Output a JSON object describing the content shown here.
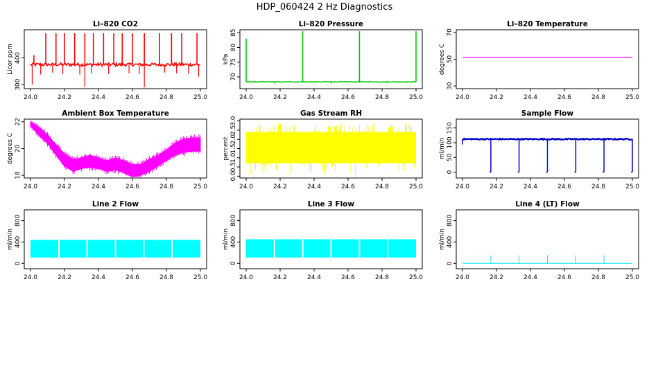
{
  "page": {
    "title": "HDP_060424  2 Hz Diagnostics"
  },
  "chart_data": [
    {
      "type": "line",
      "title": "Li–820 CO2",
      "xlabel": "",
      "ylabel": "Licor ppm",
      "xlim": [
        24.0,
        25.0
      ],
      "ylim": [
        285,
        505
      ],
      "xticks": [
        "24.0",
        "24.2",
        "24.4",
        "24.6",
        "24.8",
        "25.0"
      ],
      "yticks": [
        300,
        400
      ],
      "color": "#ff0000",
      "series": [
        {
          "baseline": 375,
          "noise": 6,
          "spikes_up": [
            {
              "x": 24.02,
              "y": 410
            },
            {
              "x": 24.09,
              "y": 492
            },
            {
              "x": 24.15,
              "y": 492
            },
            {
              "x": 24.2,
              "y": 492
            },
            {
              "x": 24.26,
              "y": 492
            },
            {
              "x": 24.32,
              "y": 492
            },
            {
              "x": 24.37,
              "y": 492
            },
            {
              "x": 24.43,
              "y": 492
            },
            {
              "x": 24.49,
              "y": 492
            },
            {
              "x": 24.54,
              "y": 492
            },
            {
              "x": 24.6,
              "y": 492
            },
            {
              "x": 24.67,
              "y": 492
            },
            {
              "x": 24.76,
              "y": 492
            },
            {
              "x": 24.83,
              "y": 492
            },
            {
              "x": 24.89,
              "y": 492
            },
            {
              "x": 24.98,
              "y": 492
            }
          ],
          "spikes_down": [
            {
              "x": 24.01,
              "y": 300
            },
            {
              "x": 24.06,
              "y": 338
            },
            {
              "x": 24.13,
              "y": 345
            },
            {
              "x": 24.19,
              "y": 340
            },
            {
              "x": 24.29,
              "y": 338
            },
            {
              "x": 24.32,
              "y": 292
            },
            {
              "x": 24.36,
              "y": 342
            },
            {
              "x": 24.46,
              "y": 340
            },
            {
              "x": 24.58,
              "y": 342
            },
            {
              "x": 24.64,
              "y": 340
            },
            {
              "x": 24.67,
              "y": 290
            },
            {
              "x": 24.79,
              "y": 345
            },
            {
              "x": 24.86,
              "y": 342
            },
            {
              "x": 24.93,
              "y": 340
            },
            {
              "x": 24.99,
              "y": 330
            }
          ]
        }
      ]
    },
    {
      "type": "line",
      "title": "Li–820 Pressure",
      "xlabel": "",
      "ylabel": "kPa",
      "xlim": [
        24.0,
        25.0
      ],
      "ylim": [
        66,
        86
      ],
      "xticks": [
        "24.0",
        "24.2",
        "24.4",
        "24.6",
        "24.8",
        "25.0"
      ],
      "yticks": [
        70,
        75,
        80,
        85
      ],
      "color": "#00cc00",
      "series": [
        {
          "baseline": 68.3,
          "noise": 0.1,
          "spikes_up": [
            {
              "x": 24.0,
              "y": 83
            },
            {
              "x": 24.333,
              "y": 85.5
            },
            {
              "x": 24.667,
              "y": 85.5
            },
            {
              "x": 25.0,
              "y": 85.5
            }
          ],
          "spikes_down": [
            {
              "x": 24.17,
              "y": 67.6
            },
            {
              "x": 24.5,
              "y": 67.6
            },
            {
              "x": 24.83,
              "y": 67.8
            }
          ]
        }
      ]
    },
    {
      "type": "line",
      "title": "Li–820 Temperature",
      "xlabel": "",
      "ylabel": "degrees C",
      "xlim": [
        24.0,
        25.0
      ],
      "ylim": [
        28,
        72
      ],
      "xticks": [
        "24.0",
        "24.2",
        "24.4",
        "24.6",
        "24.8",
        "25.0"
      ],
      "yticks": [
        30,
        50,
        70
      ],
      "color": "#ff00ff",
      "series": [
        {
          "x": [
            24.0,
            25.0
          ],
          "y": [
            51.5,
            51.5
          ]
        }
      ]
    },
    {
      "type": "area",
      "title": "Ambient Box Temperature",
      "xlabel": "",
      "ylabel": "degrees C",
      "xlim": [
        24.0,
        25.0
      ],
      "ylim": [
        17.8,
        22.2
      ],
      "xticks": [
        "24.0",
        "24.2",
        "24.4",
        "24.6",
        "24.8",
        "25.0"
      ],
      "yticks": [
        18,
        20,
        22
      ],
      "color": "#ff00ff",
      "series": [
        {
          "x": [
            24.0,
            24.05,
            24.1,
            24.15,
            24.2,
            24.25,
            24.3,
            24.35,
            24.4,
            24.45,
            24.5,
            24.55,
            24.6,
            24.65,
            24.7,
            24.75,
            24.8,
            24.85,
            24.9,
            24.95,
            25.0
          ],
          "upper": [
            22.0,
            21.6,
            21.0,
            20.3,
            19.6,
            19.2,
            19.3,
            19.5,
            19.3,
            19.1,
            19.3,
            19.1,
            18.8,
            18.8,
            19.2,
            19.5,
            19.9,
            20.4,
            20.7,
            20.8,
            20.8
          ],
          "lower": [
            21.7,
            21.0,
            20.4,
            19.5,
            18.7,
            18.3,
            18.5,
            18.6,
            18.5,
            18.3,
            18.4,
            18.2,
            17.9,
            18.0,
            18.3,
            18.7,
            19.1,
            19.5,
            19.7,
            19.8,
            19.8
          ]
        }
      ]
    },
    {
      "type": "line",
      "title": "Gas Stream RH",
      "xlabel": "",
      "ylabel": "percent",
      "xlim": [
        24.0,
        25.0
      ],
      "ylim": [
        -0.1,
        3.1
      ],
      "xticks": [
        "24.0",
        "24.2",
        "24.4",
        "24.6",
        "24.8",
        "25.0"
      ],
      "yticks": [
        "0.0",
        "0.5",
        "1.0",
        "1.5",
        "2.0",
        "2.5",
        "3.0"
      ],
      "color": "#ffff00",
      "series": [
        {
          "band_low": 0.7,
          "band_high": 2.4,
          "spike_low": 0.05,
          "spike_high": 2.9
        }
      ]
    },
    {
      "type": "line",
      "title": "Sample Flow",
      "xlabel": "",
      "ylabel": "ml/min",
      "xlim": [
        24.0,
        25.0
      ],
      "ylim": [
        -20,
        180
      ],
      "xticks": [
        "24.0",
        "24.2",
        "24.4",
        "24.6",
        "24.8",
        "25.0"
      ],
      "yticks": [
        0,
        50,
        100,
        150
      ],
      "color": "#0000cc",
      "series": [
        {
          "baseline": 112,
          "noise": 2,
          "drops_x": [
            24.167,
            24.333,
            24.5,
            24.667,
            24.833,
            25.0
          ],
          "drop_to": 0
        }
      ]
    },
    {
      "type": "area",
      "title": "Line 2 Flow",
      "xlabel": "",
      "ylabel": "ml/min",
      "xlim": [
        24.0,
        25.0
      ],
      "ylim": [
        -100,
        1000
      ],
      "xticks": [
        "24.0",
        "24.2",
        "24.4",
        "24.6",
        "24.8",
        "25.0"
      ],
      "yticks": [
        0,
        400,
        800
      ],
      "color": "#00ffff",
      "series": [
        {
          "band_low": 110,
          "band_high": 440,
          "gaps_x": [
            24.167,
            24.333,
            24.5,
            24.667,
            24.833
          ]
        }
      ]
    },
    {
      "type": "area",
      "title": "Line 3 Flow",
      "xlabel": "",
      "ylabel": "ml/min",
      "xlim": [
        24.0,
        25.0
      ],
      "ylim": [
        -100,
        1000
      ],
      "xticks": [
        "24.0",
        "24.2",
        "24.4",
        "24.6",
        "24.8",
        "25.0"
      ],
      "yticks": [
        0,
        400,
        800
      ],
      "color": "#00ffff",
      "series": [
        {
          "band_low": 110,
          "band_high": 450,
          "gaps_x": [
            24.167,
            24.333,
            24.5,
            24.667,
            24.833
          ]
        }
      ]
    },
    {
      "type": "line",
      "title": "Line 4 (LT) Flow",
      "xlabel": "",
      "ylabel": "ml/min",
      "xlim": [
        24.0,
        25.0
      ],
      "ylim": [
        -100,
        1000
      ],
      "xticks": [
        "24.0",
        "24.2",
        "24.4",
        "24.6",
        "24.8",
        "25.0"
      ],
      "yticks": [
        0,
        400,
        800
      ],
      "color": "#00e5e5",
      "series": [
        {
          "baseline": 0,
          "spikes_up": [
            {
              "x": 24.167,
              "y": 150
            },
            {
              "x": 24.333,
              "y": 150
            },
            {
              "x": 24.5,
              "y": 150
            },
            {
              "x": 24.667,
              "y": 150
            },
            {
              "x": 24.833,
              "y": 150
            }
          ]
        }
      ]
    }
  ]
}
